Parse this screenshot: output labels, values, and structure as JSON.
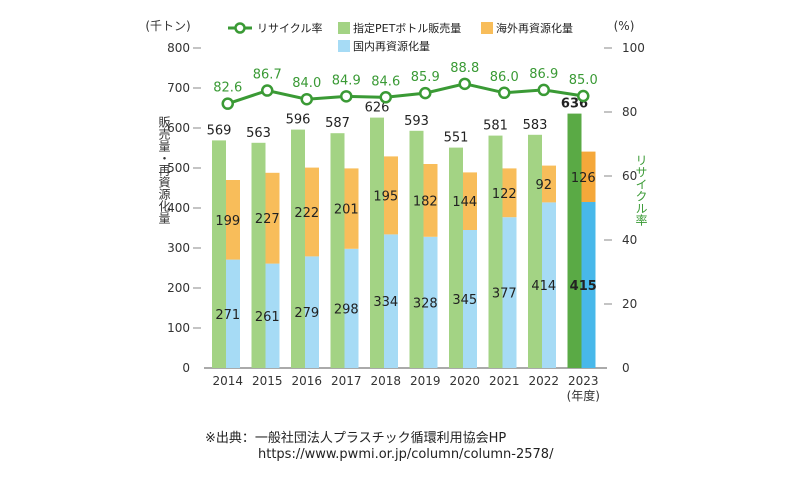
{
  "chart_data": {
    "type": "bar",
    "categories": [
      "2014",
      "2015",
      "2016",
      "2017",
      "2018",
      "2019",
      "2020",
      "2021",
      "2022",
      "2023"
    ],
    "series": [
      {
        "name": "指定PETボトル販売量",
        "values": [
          569,
          563,
          596,
          587,
          626,
          593,
          551,
          581,
          583,
          636
        ],
        "color": "#a3d384",
        "highlight_color": "#5aaa45"
      },
      {
        "name": "国内再資源化量",
        "values": [
          271,
          261,
          279,
          298,
          334,
          328,
          345,
          377,
          414,
          415
        ],
        "color": "#a6dbf5",
        "highlight_color": "#48b8ea"
      },
      {
        "name": "海外再資源化量",
        "values": [
          199,
          227,
          222,
          201,
          195,
          182,
          144,
          122,
          92,
          126
        ],
        "color": "#f8bd5a",
        "highlight_color": "#f5a83a"
      },
      {
        "name": "リサイクル率",
        "values": [
          82.6,
          86.7,
          84.0,
          84.9,
          84.6,
          85.9,
          88.8,
          86.0,
          86.9,
          85.0
        ],
        "color": "#3a9a35",
        "axis": "right",
        "type": "line"
      }
    ],
    "highlight_category": "2023",
    "left_axis": {
      "unit": "(千トン)",
      "label": "販売量・再資源化量",
      "ylim": [
        0,
        800
      ],
      "ticks": [
        "0",
        "100",
        "200",
        "300",
        "400",
        "500",
        "600",
        "700",
        "800"
      ]
    },
    "right_axis": {
      "unit": "(%)",
      "label": "リサイクル率",
      "ylim": [
        0,
        100
      ],
      "ticks": [
        "0",
        "20",
        "40",
        "60",
        "80",
        "100"
      ]
    },
    "x_unit": "(年度)",
    "legend": {
      "placement": "top"
    }
  },
  "source": {
    "line1": "※出典：一般社団法人プラスチック循環利用協会HP",
    "line2": "https://www.pwmi.or.jp/column/column-2578/"
  }
}
